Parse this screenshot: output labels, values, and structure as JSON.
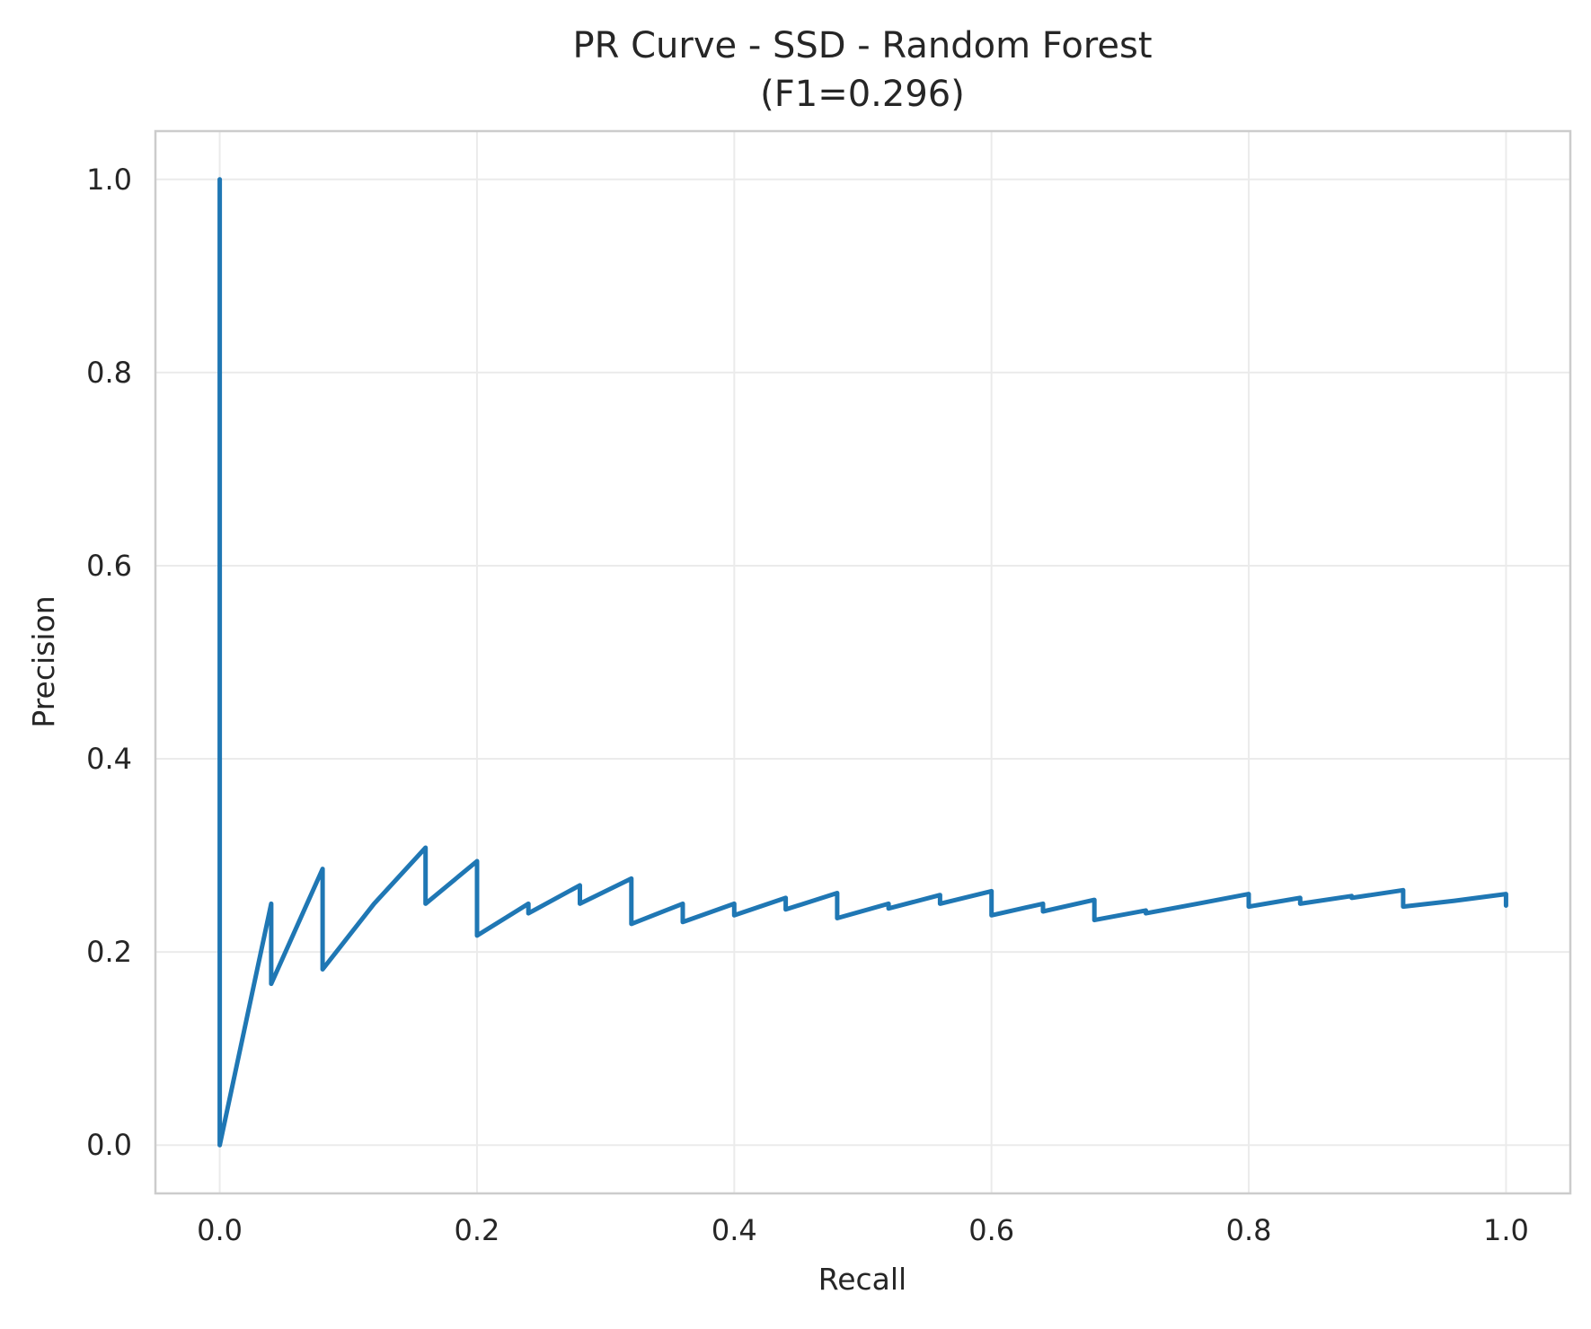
{
  "chart_data": {
    "type": "line",
    "title": "PR Curve - SSD - Random Forest",
    "subtitle": "(F1=0.296)",
    "xlabel": "Recall",
    "ylabel": "Precision",
    "xlim": [
      -0.05,
      1.05
    ],
    "ylim": [
      -0.05,
      1.05
    ],
    "x_ticks": [
      "0.0",
      "0.2",
      "0.4",
      "0.6",
      "0.8",
      "1.0"
    ],
    "y_ticks": [
      "0.0",
      "0.2",
      "0.4",
      "0.6",
      "0.8",
      "1.0"
    ],
    "grid": true,
    "line_color": "#1f77b4",
    "series": [
      {
        "x": [
          0.0,
          0.0,
          0.04,
          0.04,
          0.08,
          0.08,
          0.12,
          0.16,
          0.16,
          0.2,
          0.2,
          0.24,
          0.24,
          0.28,
          0.28,
          0.32,
          0.32,
          0.36,
          0.36,
          0.4,
          0.4,
          0.44,
          0.44,
          0.48,
          0.48,
          0.52,
          0.52,
          0.56,
          0.56,
          0.6,
          0.6,
          0.64,
          0.64,
          0.68,
          0.68,
          0.72,
          0.72,
          0.76,
          0.8,
          0.8,
          0.84,
          0.84,
          0.88,
          0.88,
          0.92,
          0.92,
          0.96,
          0.96,
          1.0,
          1.0
        ],
        "y": [
          1.0,
          0.0,
          0.25,
          0.167,
          0.286,
          0.182,
          0.25,
          0.308,
          0.25,
          0.294,
          0.217,
          0.25,
          0.24,
          0.269,
          0.25,
          0.276,
          0.229,
          0.25,
          0.231,
          0.25,
          0.238,
          0.256,
          0.244,
          0.261,
          0.235,
          0.25,
          0.245,
          0.259,
          0.25,
          0.263,
          0.238,
          0.25,
          0.242,
          0.254,
          0.233,
          0.243,
          0.24,
          0.25,
          0.26,
          0.247,
          0.256,
          0.25,
          0.258,
          0.256,
          0.264,
          0.247,
          0.253,
          0.253,
          0.26,
          0.248
        ]
      }
    ]
  }
}
